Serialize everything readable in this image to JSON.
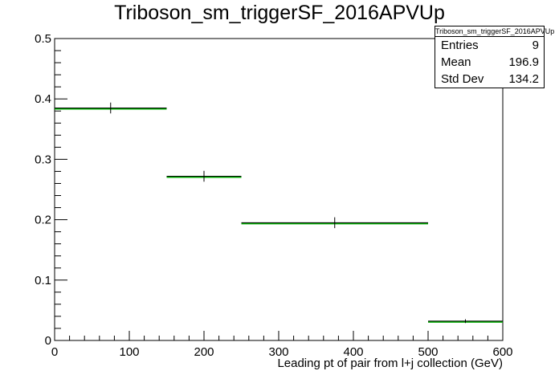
{
  "chart_data": {
    "type": "histogram",
    "title": "Triboson_sm_triggerSF_2016APVUp",
    "xlabel": "Leading pt of pair from l+j collection (GeV)",
    "ylabel": "",
    "xlim": [
      0,
      600
    ],
    "ylim": [
      0,
      0.5
    ],
    "x_ticks": [
      0,
      100,
      200,
      300,
      400,
      500,
      600
    ],
    "y_ticks": [
      0,
      0.1,
      0.2,
      0.3,
      0.4,
      0.5
    ],
    "x_tick_labels": [
      "0",
      "100",
      "200",
      "300",
      "400",
      "500",
      "600"
    ],
    "y_tick_labels": [
      "0",
      "0.1",
      "0.2",
      "0.3",
      "0.4",
      "0.5"
    ],
    "bins": [
      {
        "xlow": 0,
        "xhigh": 150,
        "value": 0.385,
        "error": 0.009
      },
      {
        "xlow": 150,
        "xhigh": 250,
        "value": 0.272,
        "error": 0.009
      },
      {
        "xlow": 250,
        "xhigh": 500,
        "value": 0.195,
        "error": 0.009
      },
      {
        "xlow": 500,
        "xhigh": 600,
        "value": 0.032,
        "error": 0.003
      }
    ],
    "grid": false,
    "stats": {
      "title": "Triboson_sm_triggerSF_2016APVUp",
      "entries_label": "Entries",
      "entries": "9",
      "mean_label": "Mean",
      "mean": "196.9",
      "std_label": "Std Dev",
      "std": "134.2"
    },
    "colors": {
      "line": "#000000",
      "fill": "#00aa00"
    }
  }
}
